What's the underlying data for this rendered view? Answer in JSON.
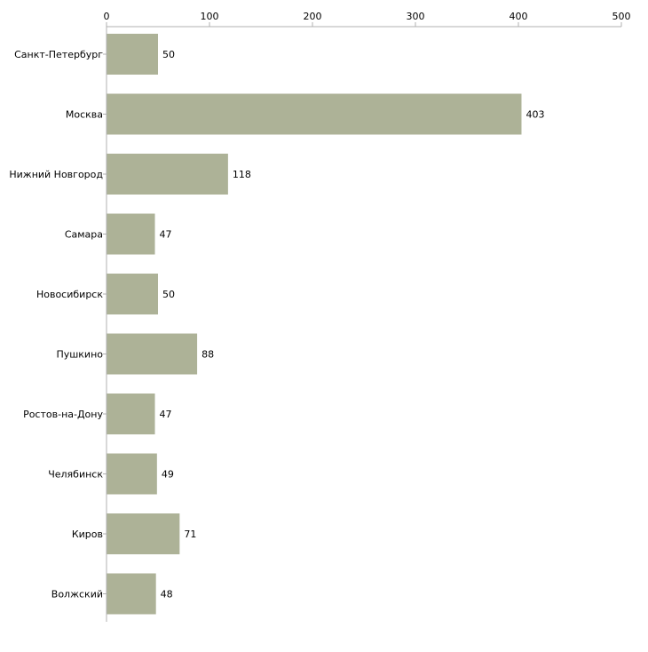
{
  "chart_data": {
    "type": "bar",
    "orientation": "horizontal",
    "title": "",
    "xlabel": "",
    "ylabel": "",
    "categories": [
      "Санкт-Петербург",
      "Москва",
      "Нижний Новгород",
      "Самара",
      "Новосибирск",
      "Пушкино",
      "Ростов-на-Дону",
      "Челябинск",
      "Киров",
      "Волжский"
    ],
    "values": [
      50,
      403,
      118,
      47,
      50,
      88,
      47,
      49,
      71,
      48
    ],
    "xlim": [
      0,
      500
    ],
    "x_ticks": [
      0,
      100,
      200,
      300,
      400,
      500
    ],
    "axis_position": "top",
    "grid": false,
    "show_data_labels": true,
    "bar_color": "#adb297",
    "axis_color": "#b0b0b0"
  }
}
